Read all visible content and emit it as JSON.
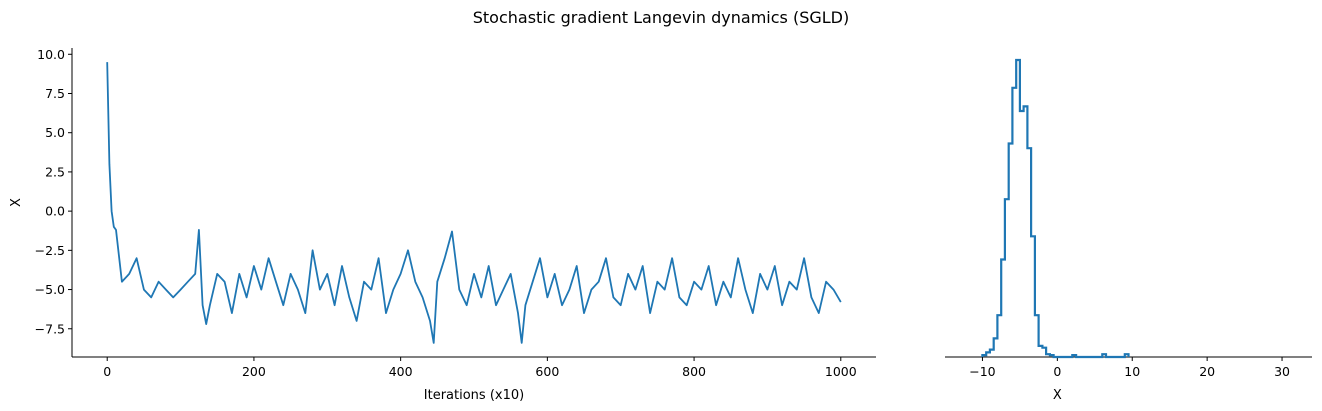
{
  "figure": {
    "title": "Stochastic gradient Langevin dynamics (SGLD)"
  },
  "colors": {
    "series": "#1f77b4"
  },
  "chart_data": [
    {
      "type": "line",
      "title": "",
      "xlabel": "Iterations (x10)",
      "ylabel": "X",
      "xlim": [
        -48,
        1048
      ],
      "ylim": [
        -9.3,
        10.4
      ],
      "xticks": [
        0,
        200,
        400,
        600,
        800,
        1000
      ],
      "xtick_labels": [
        "0",
        "200",
        "400",
        "600",
        "800",
        "1000"
      ],
      "yticks": [
        -7.5,
        -5.0,
        -2.5,
        0.0,
        2.5,
        5.0,
        7.5,
        10.0
      ],
      "ytick_labels": [
        "−7.5",
        "−5.0",
        "−2.5",
        "0.0",
        "2.5",
        "5.0",
        "7.5",
        "10.0"
      ],
      "grid": false,
      "legend": "none",
      "series": [
        {
          "x": [
            0,
            3,
            6,
            9,
            12,
            20,
            30,
            40,
            50,
            60,
            70,
            80,
            90,
            100,
            110,
            120,
            125,
            130,
            135,
            140,
            150,
            160,
            170,
            180,
            190,
            200,
            210,
            220,
            230,
            240,
            250,
            260,
            270,
            280,
            290,
            300,
            310,
            320,
            330,
            340,
            350,
            360,
            370,
            380,
            390,
            400,
            410,
            420,
            430,
            440,
            445,
            450,
            460,
            470,
            480,
            490,
            500,
            510,
            520,
            530,
            540,
            550,
            560,
            565,
            570,
            580,
            590,
            600,
            610,
            620,
            630,
            640,
            650,
            660,
            670,
            680,
            690,
            700,
            710,
            720,
            730,
            740,
            750,
            760,
            770,
            780,
            790,
            800,
            810,
            820,
            830,
            840,
            850,
            860,
            870,
            880,
            890,
            900,
            910,
            920,
            930,
            940,
            950,
            960,
            970,
            980,
            990,
            1000
          ],
          "y": [
            9.5,
            3.0,
            0.0,
            -1.0,
            -1.2,
            -4.5,
            -4.0,
            -3.0,
            -5.0,
            -5.5,
            -4.5,
            -5.0,
            -5.5,
            -5.0,
            -4.5,
            -4.0,
            -1.2,
            -6.0,
            -7.2,
            -6.0,
            -4.0,
            -4.5,
            -6.5,
            -4.0,
            -5.5,
            -3.5,
            -5.0,
            -3.0,
            -4.5,
            -6.0,
            -4.0,
            -5.0,
            -6.5,
            -2.5,
            -5.0,
            -4.0,
            -6.0,
            -3.5,
            -5.5,
            -7.0,
            -4.5,
            -5.0,
            -3.0,
            -6.5,
            -5.0,
            -4.0,
            -2.5,
            -4.5,
            -5.5,
            -7.0,
            -8.4,
            -4.5,
            -3.0,
            -1.3,
            -5.0,
            -6.0,
            -4.0,
            -5.5,
            -3.5,
            -6.0,
            -5.0,
            -4.0,
            -6.5,
            -8.4,
            -6.0,
            -4.5,
            -3.0,
            -5.5,
            -4.0,
            -6.0,
            -5.0,
            -3.5,
            -6.5,
            -5.0,
            -4.5,
            -3.0,
            -5.5,
            -6.0,
            -4.0,
            -5.0,
            -3.5,
            -6.5,
            -4.5,
            -5.0,
            -3.0,
            -5.5,
            -6.0,
            -4.5,
            -5.0,
            -3.5,
            -6.0,
            -4.5,
            -5.5,
            -3.0,
            -5.0,
            -6.5,
            -4.0,
            -5.0,
            -3.5,
            -6.0,
            -4.5,
            -5.0,
            -3.0,
            -5.5,
            -6.5,
            -4.5,
            -5.0,
            -5.8
          ]
        }
      ]
    },
    {
      "type": "histogram",
      "title": "",
      "xlabel": "X",
      "ylabel": "",
      "xlim": [
        -15,
        34
      ],
      "xticks": [
        -10,
        0,
        10,
        20,
        30
      ],
      "xtick_labels": [
        "−10",
        "0",
        "10",
        "20",
        "30"
      ],
      "grid": false,
      "legend": "none",
      "bin_edges": [
        -10,
        -9.5,
        -9,
        -8.5,
        -8,
        -7.5,
        -7,
        -6.5,
        -6,
        -5.5,
        -5,
        -4.5,
        -4,
        -3.5,
        -3,
        -2.5,
        -2,
        -1.5,
        -1,
        -0.5,
        0,
        0.5,
        1,
        1.5,
        2,
        2.5,
        3,
        3.5,
        4,
        4.5,
        5,
        5.5,
        6,
        6.5,
        7,
        7.5,
        8,
        8.5,
        9,
        9.5
      ],
      "counts": [
        2,
        5,
        8,
        20,
        45,
        105,
        170,
        230,
        290,
        320,
        265,
        270,
        225,
        130,
        45,
        12,
        10,
        3,
        2,
        0,
        0,
        0,
        0,
        0,
        2,
        0,
        0,
        0,
        0,
        0,
        0,
        0,
        3,
        0,
        0,
        0,
        0,
        0,
        3
      ]
    }
  ]
}
